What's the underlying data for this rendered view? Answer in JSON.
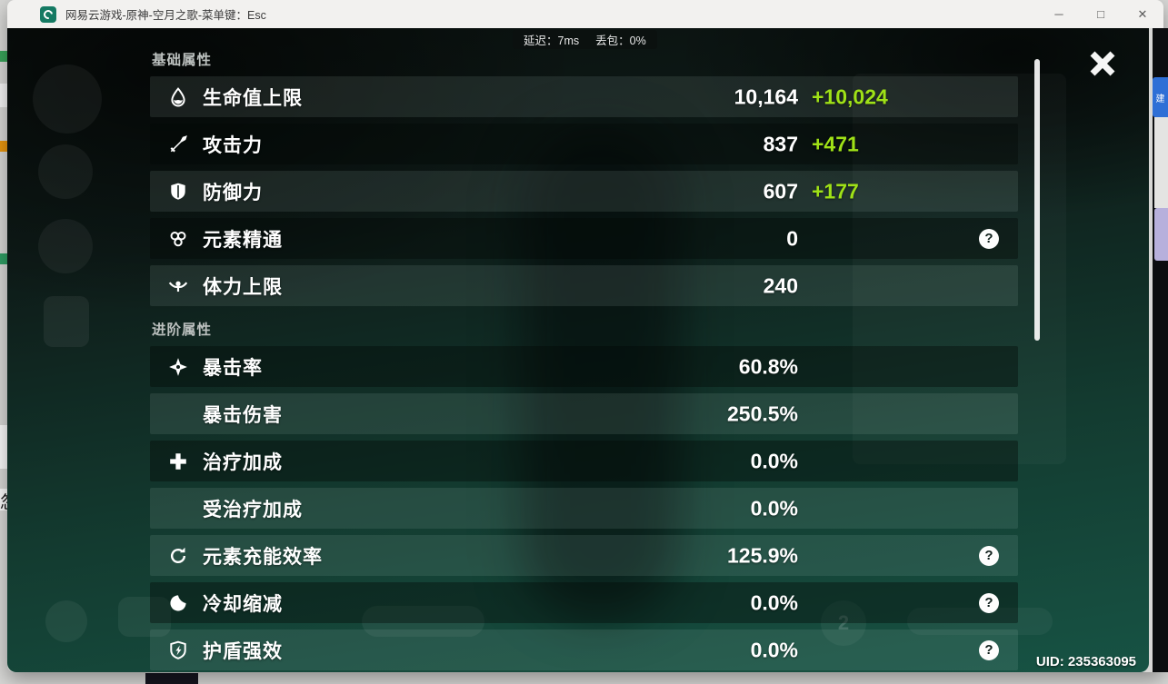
{
  "window": {
    "title": "网易云游戏-原神-空月之歌-菜单键：Esc",
    "controls": {
      "minimize": "─",
      "maximize": "□",
      "close": "✕"
    }
  },
  "status_bar": {
    "latency": "延迟：7ms",
    "packet_loss": "丢包：0%"
  },
  "overlay": {
    "uid": "UID: 235363095",
    "help_glyph": "?",
    "sections": [
      {
        "title": "基础属性",
        "rows": [
          {
            "icon": "hp-icon",
            "label": "生命值上限",
            "value": "10,164",
            "bonus": "+10,024",
            "help": false
          },
          {
            "icon": "atk-icon",
            "label": "攻击力",
            "value": "837",
            "bonus": "+471",
            "help": false
          },
          {
            "icon": "def-icon",
            "label": "防御力",
            "value": "607",
            "bonus": "+177",
            "help": false
          },
          {
            "icon": "elemental-mastery-icon",
            "label": "元素精通",
            "value": "0",
            "bonus": "",
            "help": true
          },
          {
            "icon": "stamina-icon",
            "label": "体力上限",
            "value": "240",
            "bonus": "",
            "help": false
          }
        ]
      },
      {
        "title": "进阶属性",
        "rows": [
          {
            "icon": "crit-rate-icon",
            "label": "暴击率",
            "value": "60.8%",
            "bonus": "",
            "help": false
          },
          {
            "icon": "",
            "label": "暴击伤害",
            "value": "250.5%",
            "bonus": "",
            "help": false
          },
          {
            "icon": "healing-bonus-icon",
            "label": "治疗加成",
            "value": "0.0%",
            "bonus": "",
            "help": false
          },
          {
            "icon": "",
            "label": "受治疗加成",
            "value": "0.0%",
            "bonus": "",
            "help": false
          },
          {
            "icon": "energy-recharge-icon",
            "label": "元素充能效率",
            "value": "125.9%",
            "bonus": "",
            "help": true
          },
          {
            "icon": "cooldown-icon",
            "label": "冷却缩减",
            "value": "0.0%",
            "bonus": "",
            "help": true
          },
          {
            "icon": "shield-strength-icon",
            "label": "护盾强效",
            "value": "0.0%",
            "bonus": "",
            "help": true
          }
        ]
      }
    ],
    "ghost_party_number": "2",
    "left_edge_glyph": "忽"
  },
  "colors": {
    "bonus_green": "#9fe117",
    "accent_teal": "#157a63",
    "tab_blue": "#2e6fd6",
    "tab_purple": "#b7b0dc"
  }
}
